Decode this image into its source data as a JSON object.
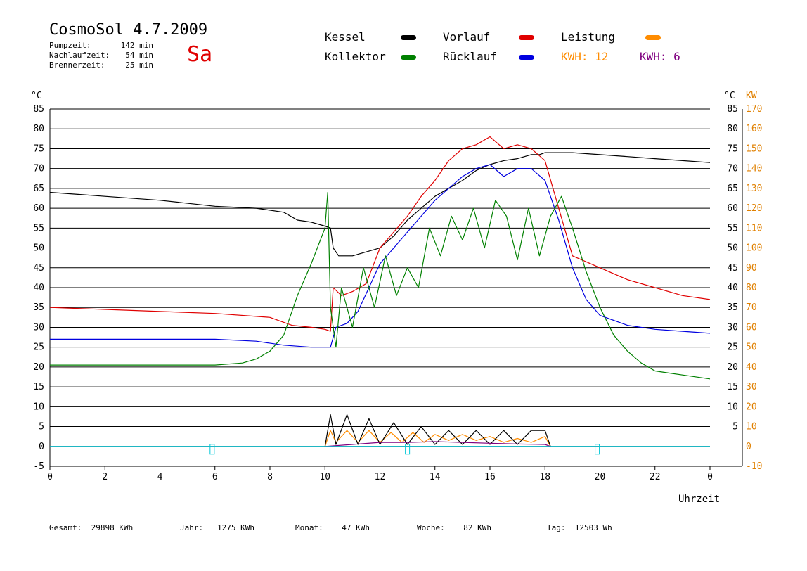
{
  "header": {
    "title": "CosmoSol 4.7.2009",
    "day": "Sa",
    "stats": [
      {
        "label": "Pumpzeit:",
        "value": "142 min"
      },
      {
        "label": "Nachlaufzeit:",
        "value": "54 min"
      },
      {
        "label": "Brennerzeit:",
        "value": "25 min"
      }
    ]
  },
  "legend": {
    "kessel": "Kessel",
    "kollektor": "Kollektor",
    "vorlauf": "Vorlauf",
    "ruecklauf": "Rücklauf",
    "leistung": "Leistung",
    "kwh1": "KWH: 12",
    "kwh2": "KWH: 6"
  },
  "colors": {
    "kessel": "#000000",
    "kollektor": "#008000",
    "vorlauf": "#e00000",
    "ruecklauf": "#0000e0",
    "leistung": "#ff8c00",
    "kwh2": "#800080",
    "pump": "#00c8d8"
  },
  "footer": [
    {
      "label": "Gesamt:",
      "value": "29898 KWh"
    },
    {
      "label": "Jahr:",
      "value": "1275 KWh"
    },
    {
      "label": "Monat:",
      "value": "47 KWh"
    },
    {
      "label": "Woche:",
      "value": "82 KWh"
    },
    {
      "label": "Tag:",
      "value": "12503 Wh"
    }
  ],
  "chart_data": {
    "type": "line",
    "xlabel": "Uhrzeit",
    "ylabel_left": "°C",
    "ylabel_right_a": "°C",
    "ylabel_right_b": "KW",
    "xlim": [
      0,
      24
    ],
    "ylim": [
      -5,
      85
    ],
    "ylim_kw": [
      -10,
      170
    ],
    "x_ticks": [
      "0",
      "2",
      "4",
      "6",
      "8",
      "10",
      "12",
      "14",
      "16",
      "18",
      "20",
      "22",
      "0"
    ],
    "y_ticks_left": [
      "85",
      "80",
      "75",
      "70",
      "65",
      "60",
      "55",
      "50",
      "45",
      "40",
      "35",
      "30",
      "25",
      "20",
      "15",
      "10",
      "5",
      "0",
      "-5"
    ],
    "y_ticks_right": [
      "85",
      "80",
      "75",
      "70",
      "65",
      "60",
      "55",
      "50",
      "45",
      "40",
      "35",
      "30",
      "25",
      "20",
      "15",
      "10",
      "5"
    ],
    "kw_ticks": [
      "170",
      "160",
      "150",
      "140",
      "130",
      "120",
      "110",
      "100",
      "90",
      "80",
      "70",
      "60",
      "50",
      "40",
      "30",
      "20",
      "10",
      "0",
      "-10"
    ],
    "grid": true,
    "series": [
      {
        "name": "Kessel",
        "color": "#000000",
        "x": [
          0,
          2,
          4,
          6,
          7.5,
          8.5,
          9,
          9.5,
          10,
          10.2,
          10.3,
          10.5,
          11,
          11.5,
          12,
          12.5,
          13,
          13.5,
          14,
          14.5,
          15,
          15.5,
          16,
          16.5,
          17,
          17.5,
          17.8,
          18,
          19,
          20,
          21,
          22,
          23,
          24
        ],
        "y": [
          64,
          63,
          62,
          60.5,
          60,
          59,
          57,
          56.5,
          55.5,
          55,
          50,
          48,
          48,
          49,
          50,
          53,
          57,
          60,
          63,
          65,
          67,
          69.5,
          71,
          72,
          72.5,
          73.5,
          73.5,
          74,
          74,
          73.5,
          73,
          72.5,
          72,
          71.5
        ]
      },
      {
        "name": "Vorlauf",
        "color": "#e00000",
        "x": [
          0,
          2,
          4,
          6,
          8,
          8.8,
          9.5,
          10,
          10.2,
          10.3,
          10.6,
          11,
          11.5,
          12,
          12.5,
          13,
          13.5,
          14,
          14.5,
          15,
          15.5,
          16,
          16.5,
          17,
          17.5,
          18,
          18.5,
          19,
          20,
          21,
          22,
          23,
          24
        ],
        "y": [
          35,
          34.5,
          34,
          33.5,
          32.5,
          30.5,
          30,
          29.5,
          29,
          40,
          38,
          39,
          41,
          50,
          54,
          58,
          63,
          67,
          72,
          75,
          76,
          78,
          75,
          76,
          75,
          72,
          60,
          48,
          45,
          42,
          40,
          38,
          37
        ]
      },
      {
        "name": "Rücklauf",
        "color": "#0000e0",
        "x": [
          0,
          2,
          4,
          6,
          7.5,
          8.5,
          9.5,
          10,
          10.2,
          10.4,
          10.8,
          11.2,
          11.6,
          12,
          12.5,
          13,
          13.5,
          14,
          14.5,
          15,
          15.5,
          16,
          16.5,
          17,
          17.5,
          18,
          18.5,
          19,
          19.5,
          20,
          21,
          22,
          23,
          24
        ],
        "y": [
          27,
          27,
          27,
          27,
          26.5,
          25.5,
          25,
          25,
          25,
          30,
          31,
          34,
          40,
          46,
          50,
          54,
          58,
          62,
          65,
          68,
          70,
          71,
          68,
          70,
          70,
          67,
          57,
          45,
          37,
          33,
          30.5,
          29.5,
          29,
          28.5
        ]
      },
      {
        "name": "Kollektor",
        "color": "#008000",
        "x": [
          0,
          2,
          4,
          6,
          7,
          7.5,
          8,
          8.5,
          9,
          9.5,
          10,
          10.1,
          10.2,
          10.4,
          10.6,
          11,
          11.4,
          11.8,
          12.2,
          12.6,
          13,
          13.4,
          13.8,
          14.2,
          14.6,
          15,
          15.4,
          15.8,
          16.2,
          16.6,
          17,
          17.4,
          17.8,
          18.2,
          18.6,
          19,
          19.5,
          20,
          20.5,
          21,
          21.5,
          22,
          22.5,
          23,
          24
        ],
        "y": [
          20.5,
          20.5,
          20.5,
          20.5,
          21,
          22,
          24,
          28,
          38,
          46,
          55,
          64,
          35,
          25,
          40,
          30,
          45,
          35,
          48,
          38,
          45,
          40,
          55,
          48,
          58,
          52,
          60,
          50,
          62,
          58,
          47,
          60,
          48,
          58,
          63,
          55,
          44,
          35,
          28,
          24,
          21,
          19,
          18.5,
          18,
          17
        ]
      },
      {
        "name": "Leistung",
        "color": "#ff8c00",
        "x": [
          10,
          10.2,
          10.4,
          10.8,
          11.2,
          11.6,
          12,
          12.4,
          12.8,
          13.2,
          13.6,
          14,
          14.5,
          15,
          15.5,
          16,
          16.5,
          17,
          17.5,
          18,
          18.2
        ],
        "y": [
          0,
          4,
          1,
          4,
          1,
          4,
          1,
          3.5,
          1,
          3.5,
          1,
          3,
          1.5,
          3,
          1.5,
          2.5,
          1,
          2,
          1,
          2.5,
          0
        ]
      },
      {
        "name": "Kessel-Leistung",
        "color": "#000000",
        "x": [
          10,
          10.2,
          10.4,
          10.8,
          11.2,
          11.6,
          12,
          12.5,
          13,
          13.5,
          14,
          14.5,
          15,
          15.5,
          16,
          16.5,
          17,
          17.5,
          18,
          18.2
        ],
        "y": [
          0,
          8,
          0.5,
          8,
          0.5,
          7,
          0.5,
          6,
          0.5,
          5,
          0.5,
          4,
          0.5,
          4,
          0.5,
          4,
          0.5,
          4,
          4,
          0
        ]
      },
      {
        "name": "KWH2",
        "color": "#800080",
        "x": [
          10,
          11,
          12,
          13,
          14,
          15,
          16,
          17,
          18,
          18.2
        ],
        "y": [
          0,
          0.5,
          1,
          1,
          1.2,
          1,
          0.8,
          0.6,
          0.5,
          0
        ]
      },
      {
        "name": "Pumpe",
        "color": "#00c8d8",
        "x": [
          0,
          24
        ],
        "y": [
          0,
          0
        ]
      }
    ]
  }
}
